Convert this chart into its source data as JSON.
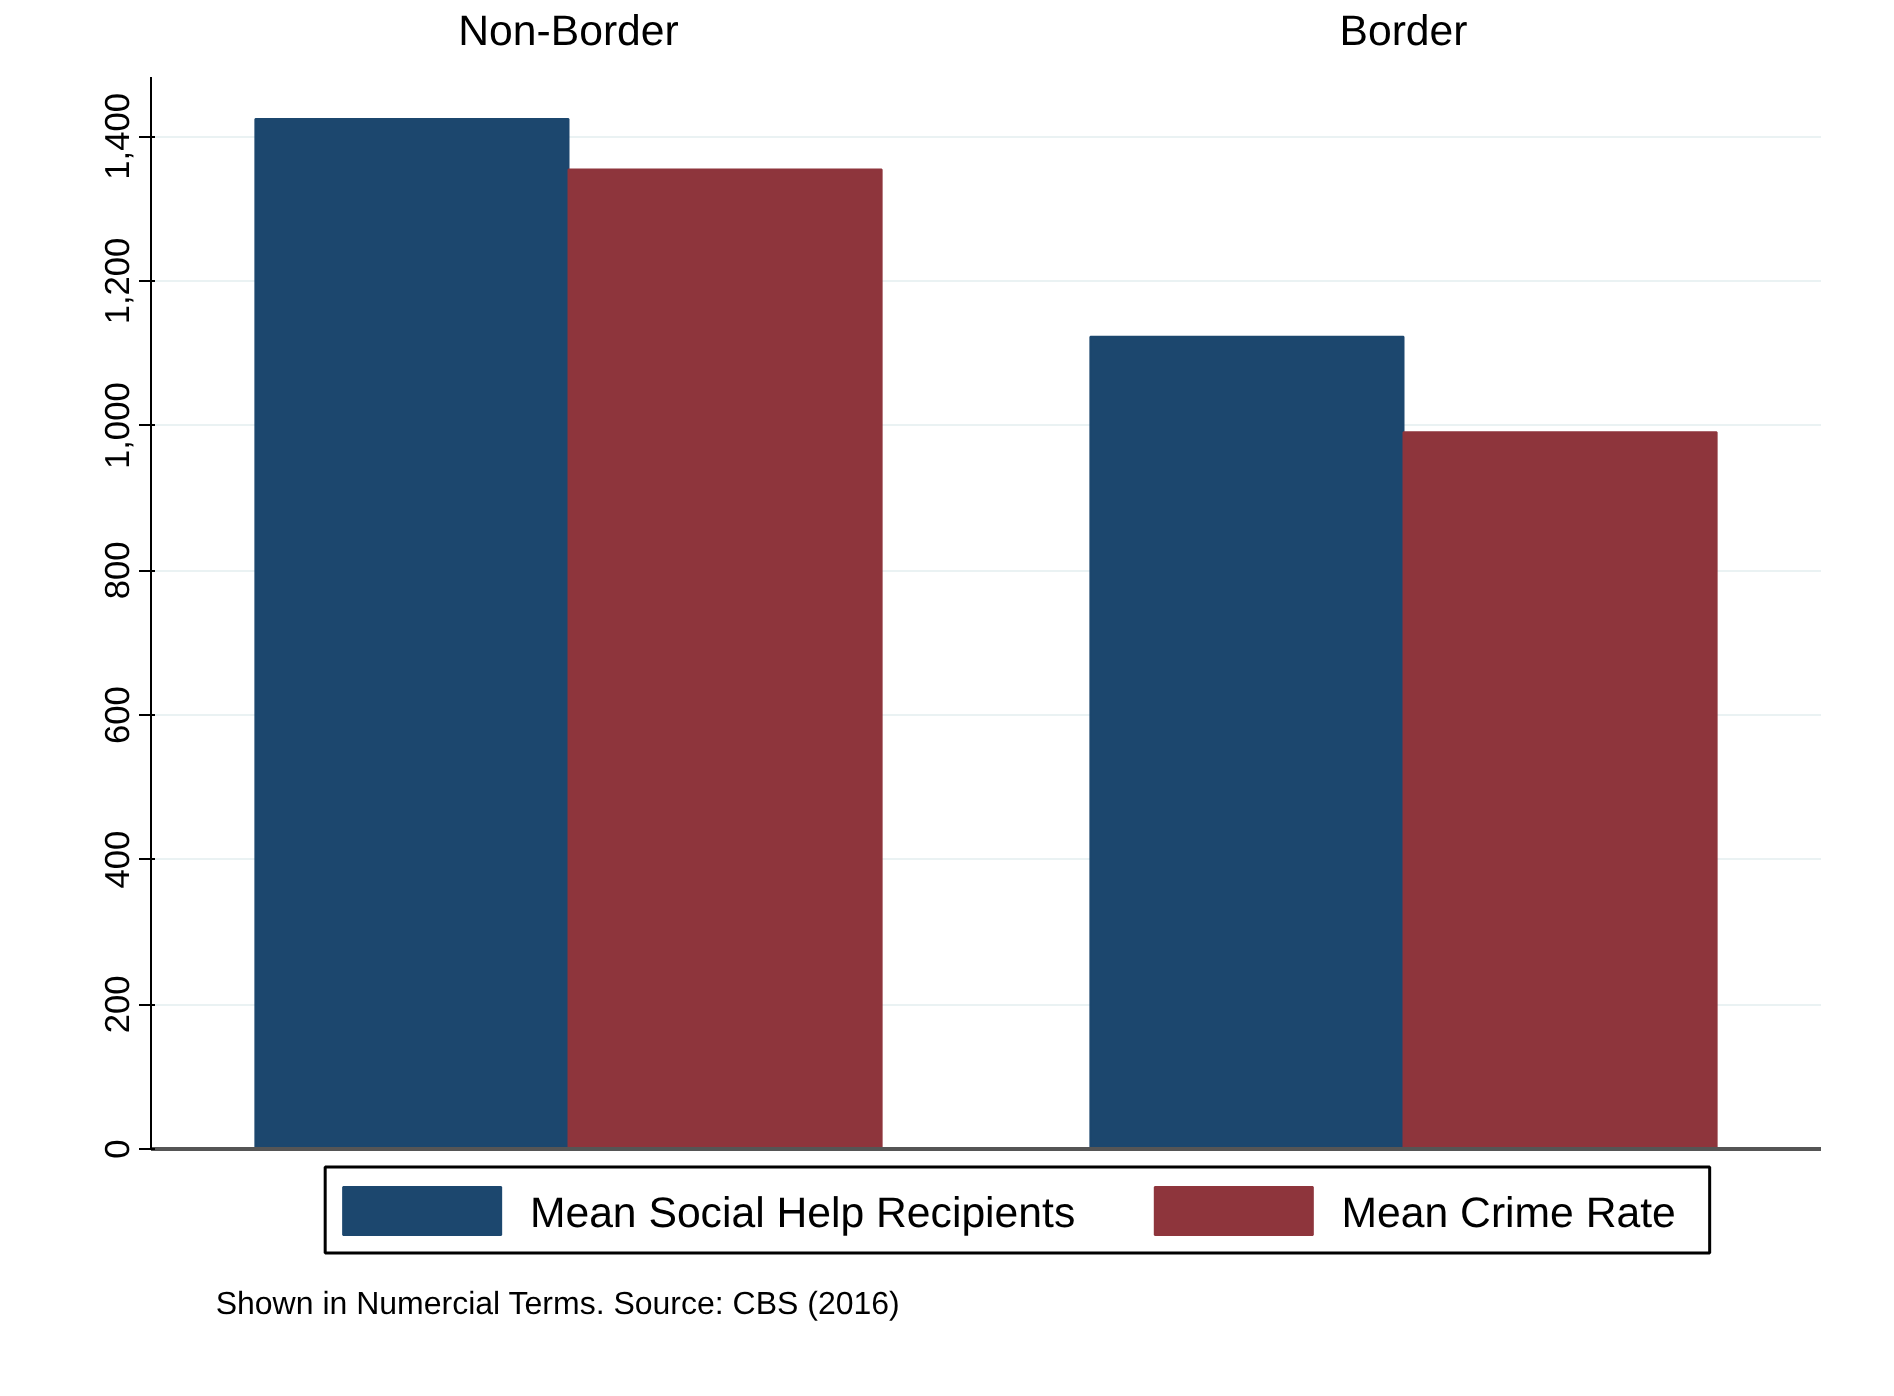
{
  "chart_data": {
    "type": "bar",
    "categories": [
      "Non-Border",
      "Border"
    ],
    "series": [
      {
        "name": "Mean Social Help Recipients",
        "color": "#1c476e",
        "values": [
          1424,
          1123
        ]
      },
      {
        "name": "Mean Crime Rate",
        "color": "#8e353c",
        "values": [
          1354,
          991
        ]
      }
    ],
    "ylim": [
      0,
      1482
    ],
    "yticks": [
      0,
      200,
      400,
      600,
      800,
      {
        "value": 1000,
        "label": "1,000"
      },
      {
        "value": 1200,
        "label": "1,200"
      },
      {
        "value": 1400,
        "label": "1,400"
      }
    ],
    "grid": "y",
    "legend": "bottom",
    "annotations": [
      "Shown in Numercial Terms. Source: CBS (2016)"
    ]
  }
}
